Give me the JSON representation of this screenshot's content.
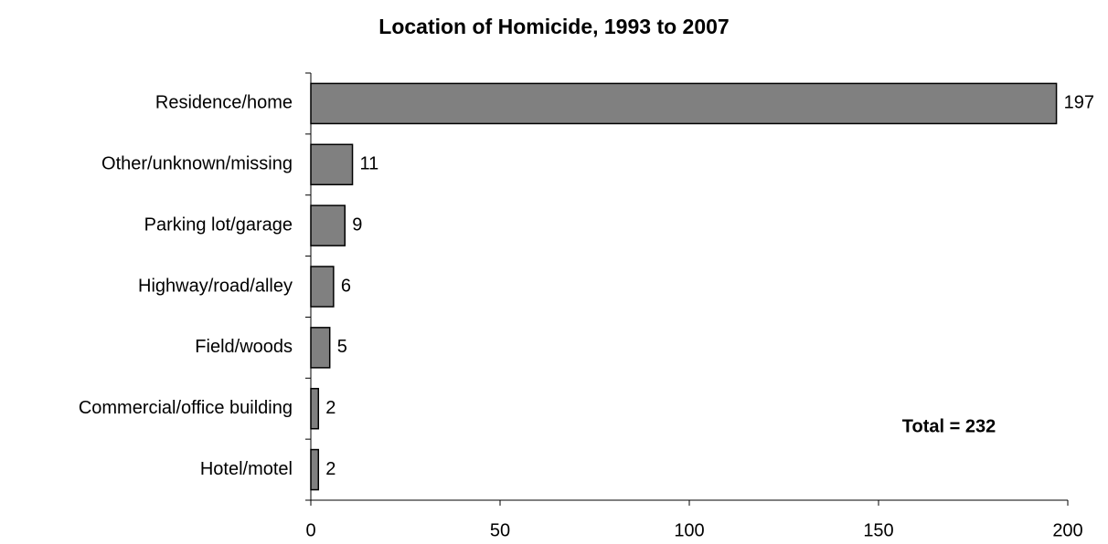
{
  "chart_data": {
    "type": "barh",
    "title": "Location of Homicide, 1993 to 2007",
    "categories": [
      "Residence/home",
      "Other/unknown/missing",
      "Parking lot/garage",
      "Highway/road/alley",
      "Field/woods",
      "Commercial/office building",
      "Hotel/motel"
    ],
    "values": [
      197,
      11,
      9,
      6,
      5,
      2,
      2
    ],
    "color": "#808080",
    "xlim": [
      0,
      200
    ],
    "xticks": [
      0,
      50,
      100,
      150,
      200
    ],
    "annotation": "Total = 232"
  }
}
